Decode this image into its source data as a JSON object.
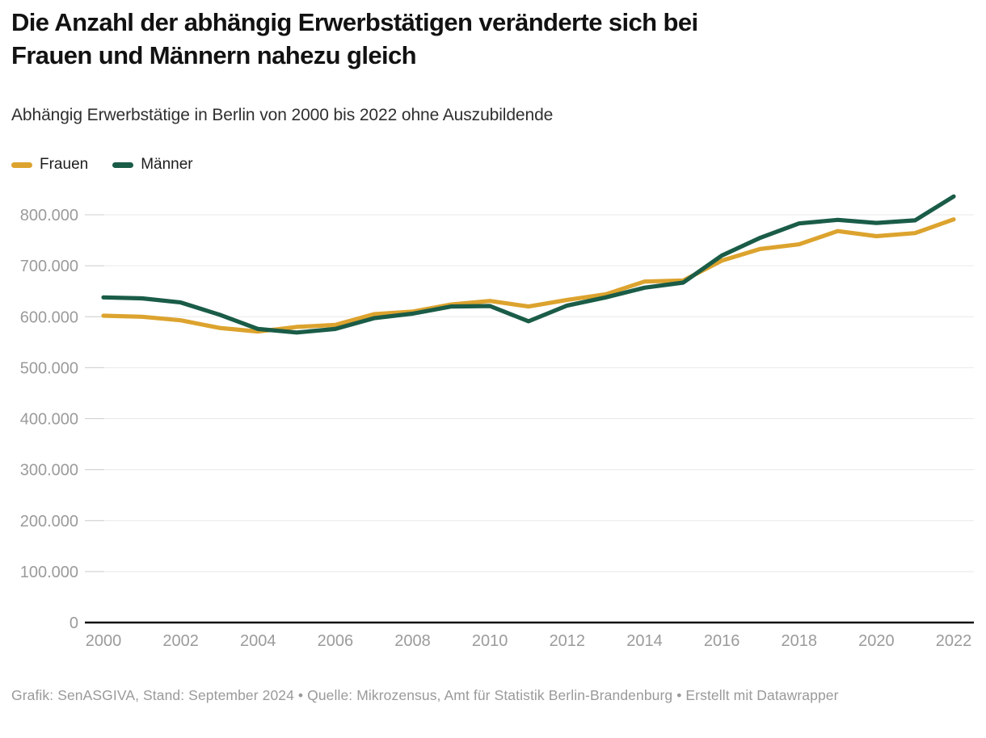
{
  "header": {
    "title_lines": [
      "Die Anzahl der abhängig Erwerbstätigen veränderte sich bei",
      "Frauen und Männern nahezu gleich"
    ],
    "subtitle": "Abhängig Erwerbstätige in Berlin von 2000 bis 2022 ohne Auszubildende"
  },
  "legend": {
    "items": [
      {
        "label": "Frauen",
        "color": "#DCA32E"
      },
      {
        "label": "Männer",
        "color": "#1A5C47"
      }
    ]
  },
  "chart_data": {
    "type": "line",
    "title": "Die Anzahl der abhängig Erwerbstätigen veränderte sich bei Frauen und Männern nahezu gleich",
    "subtitle": "Abhängig Erwerbstätige in Berlin von 2000 bis 2022 ohne Auszubildende",
    "x": [
      2000,
      2001,
      2002,
      2003,
      2004,
      2005,
      2006,
      2007,
      2008,
      2009,
      2010,
      2011,
      2012,
      2013,
      2014,
      2015,
      2016,
      2017,
      2018,
      2019,
      2020,
      2021,
      2022
    ],
    "series": [
      {
        "name": "Frauen",
        "color": "#DCA32E",
        "values": [
          602000,
          600000,
          593000,
          578000,
          571000,
          580000,
          584000,
          605000,
          610000,
          624000,
          631000,
          620000,
          633000,
          644000,
          669000,
          671000,
          710000,
          733000,
          742000,
          768000,
          758000,
          764000,
          791000
        ]
      },
      {
        "name": "Männer",
        "color": "#1A5C47",
        "values": [
          638000,
          636000,
          628000,
          604000,
          576000,
          569000,
          576000,
          597000,
          606000,
          620000,
          621000,
          591000,
          622000,
          638000,
          657000,
          667000,
          720000,
          755000,
          783000,
          790000,
          784000,
          789000,
          836000
        ]
      }
    ],
    "ylim": [
      0,
      860000
    ],
    "yticks": [
      {
        "value": 0,
        "label": "0"
      },
      {
        "value": 100000,
        "label": "100.000"
      },
      {
        "value": 200000,
        "label": "200.000"
      },
      {
        "value": 300000,
        "label": "300.000"
      },
      {
        "value": 400000,
        "label": "400.000"
      },
      {
        "value": 500000,
        "label": "500.000"
      },
      {
        "value": 600000,
        "label": "600.000"
      },
      {
        "value": 700000,
        "label": "700.000"
      },
      {
        "value": 800000,
        "label": "800.000"
      }
    ],
    "xticks": [
      {
        "value": 2000,
        "label": "2000"
      },
      {
        "value": 2002,
        "label": "2002"
      },
      {
        "value": 2004,
        "label": "2004"
      },
      {
        "value": 2006,
        "label": "2006"
      },
      {
        "value": 2008,
        "label": "2008"
      },
      {
        "value": 2010,
        "label": "2010"
      },
      {
        "value": 2012,
        "label": "2012"
      },
      {
        "value": 2014,
        "label": "2014"
      },
      {
        "value": 2016,
        "label": "2016"
      },
      {
        "value": 2018,
        "label": "2018"
      },
      {
        "value": 2020,
        "label": "2020"
      },
      {
        "value": 2022,
        "label": "2022"
      }
    ],
    "grid": "horizontal",
    "legend_position": "top-left"
  },
  "footer": {
    "text": "Grafik: SenASGIVA, Stand: September 2024 • Quelle: Mikrozensus, Amt für Statistik Berlin-Brandenburg • Erstellt mit Datawrapper"
  }
}
